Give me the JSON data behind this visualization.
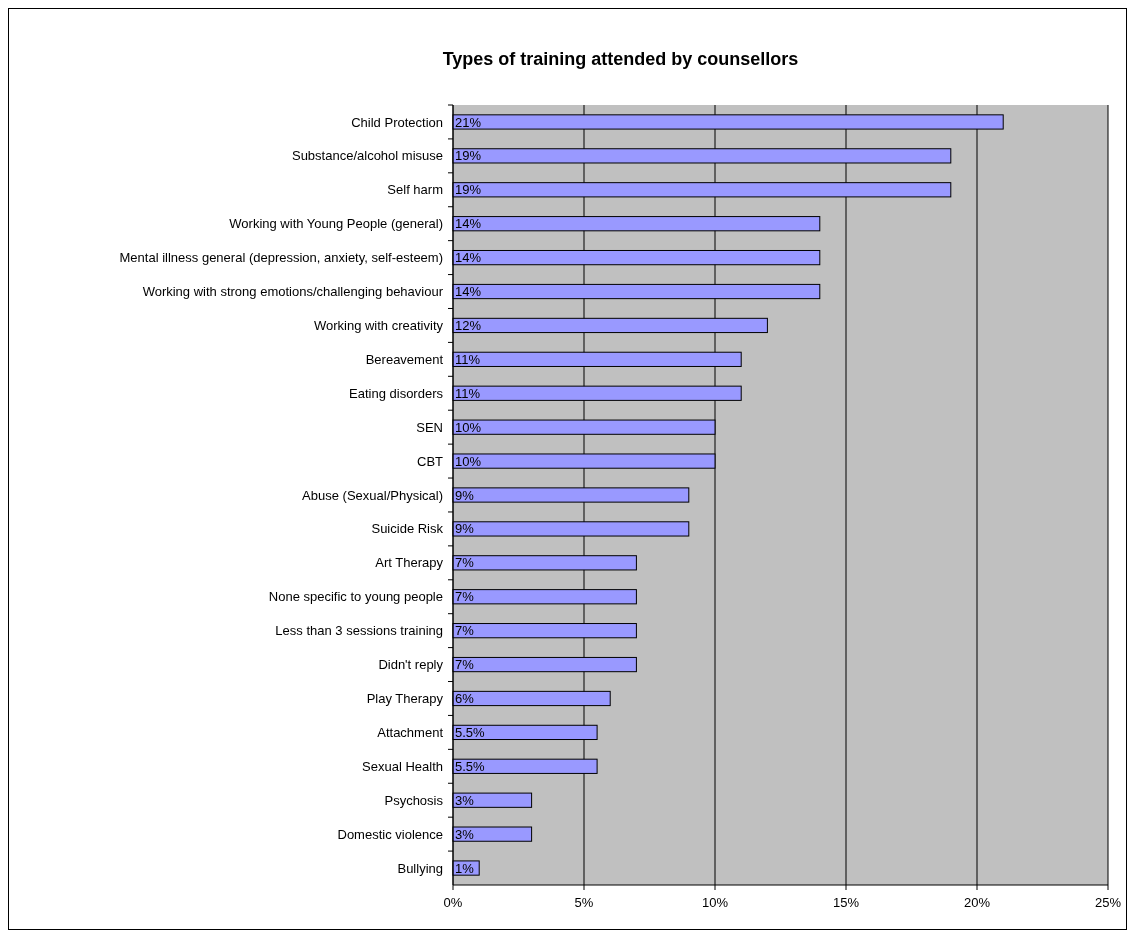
{
  "chart_data": {
    "type": "bar",
    "orientation": "horizontal",
    "title": "Types of training attended by counsellors",
    "categories": [
      "Child Protection",
      "Substance/alcohol misuse",
      "Self harm",
      "Working with Young People (general)",
      "Mental illness general (depression, anxiety, self-esteem)",
      "Working with strong emotions/challenging behaviour",
      "Working with creativity",
      "Bereavement",
      "Eating disorders",
      "SEN",
      "CBT",
      "Abuse (Sexual/Physical)",
      "Suicide Risk",
      "Art Therapy",
      "None specific to young people",
      "Less than 3 sessions training",
      "Didn't reply",
      "Play Therapy",
      "Attachment",
      "Sexual Health",
      "Psychosis",
      "Domestic violence",
      "Bullying"
    ],
    "values": [
      21,
      19,
      19,
      14,
      14,
      14,
      12,
      11,
      11,
      10,
      10,
      9,
      9,
      7,
      7,
      7,
      7,
      6,
      5.5,
      5.5,
      3,
      3,
      1
    ],
    "value_labels": [
      "21%",
      "19%",
      "19%",
      "14%",
      "14%",
      "14%",
      "12%",
      "11%",
      "11%",
      "10%",
      "10%",
      "9%",
      "9%",
      "7%",
      "7%",
      "7%",
      "7%",
      "6%",
      "5.5%",
      "5.5%",
      "3%",
      "3%",
      "1%"
    ],
    "color": "#9999ff",
    "xlim": [
      0,
      25
    ],
    "xticks": [
      {
        "value": 0,
        "label": "0%"
      },
      {
        "value": 5,
        "label": "5%"
      },
      {
        "value": 10,
        "label": "10%"
      },
      {
        "value": 15,
        "label": "15%"
      },
      {
        "value": 20,
        "label": "20%"
      },
      {
        "value": 25,
        "label": "25%"
      }
    ],
    "grid": "x"
  }
}
